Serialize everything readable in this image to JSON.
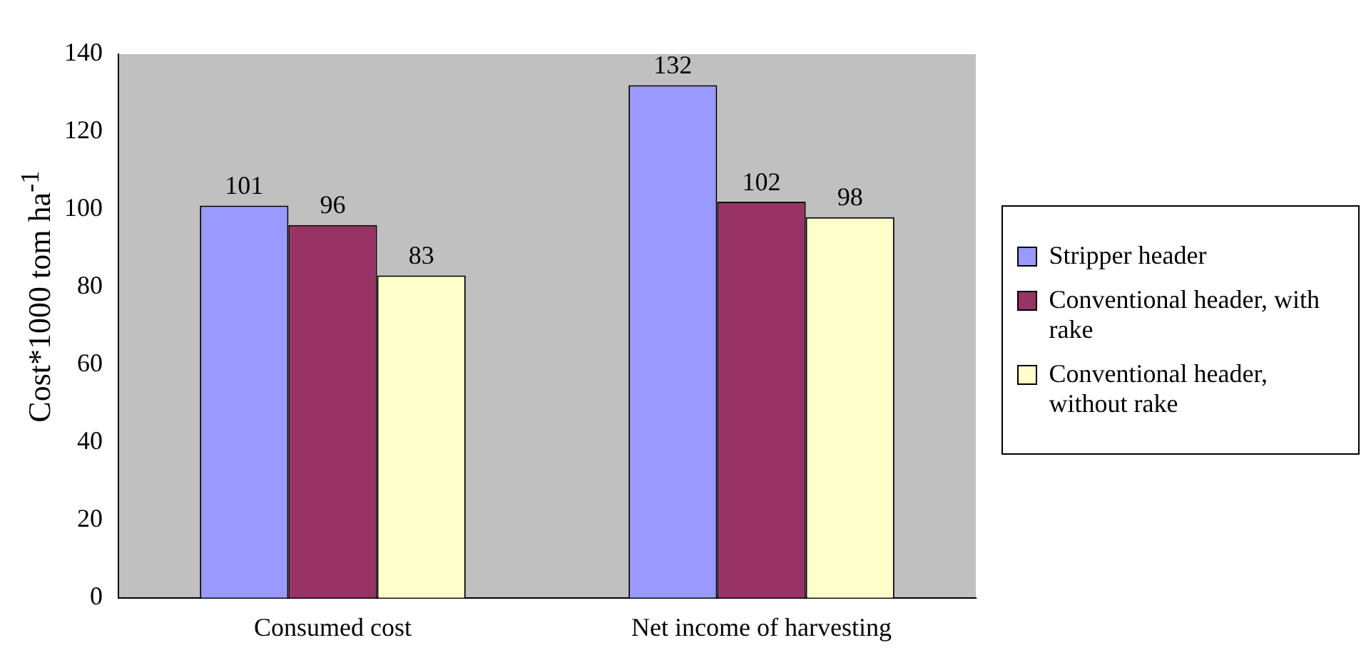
{
  "chart_data": {
    "type": "bar",
    "ylabel": "Cost*1000 tom ha$^{-1}$",
    "categories": [
      "Consumed cost",
      "Net income of harvesting"
    ],
    "series": [
      {
        "name": "Stripper header",
        "color": "#9999ff",
        "values": [
          101,
          132
        ]
      },
      {
        "name": "Conventional header, with rake",
        "color": "#993366",
        "values": [
          96,
          102
        ]
      },
      {
        "name": "Conventional header, without rake",
        "color": "#ffffcc",
        "values": [
          83,
          98
        ]
      }
    ],
    "ylim": [
      0,
      140
    ],
    "yticks": [
      0,
      20,
      40,
      60,
      80,
      100,
      120,
      140
    ],
    "grid": false,
    "legend": "right",
    "data_labels": true
  }
}
